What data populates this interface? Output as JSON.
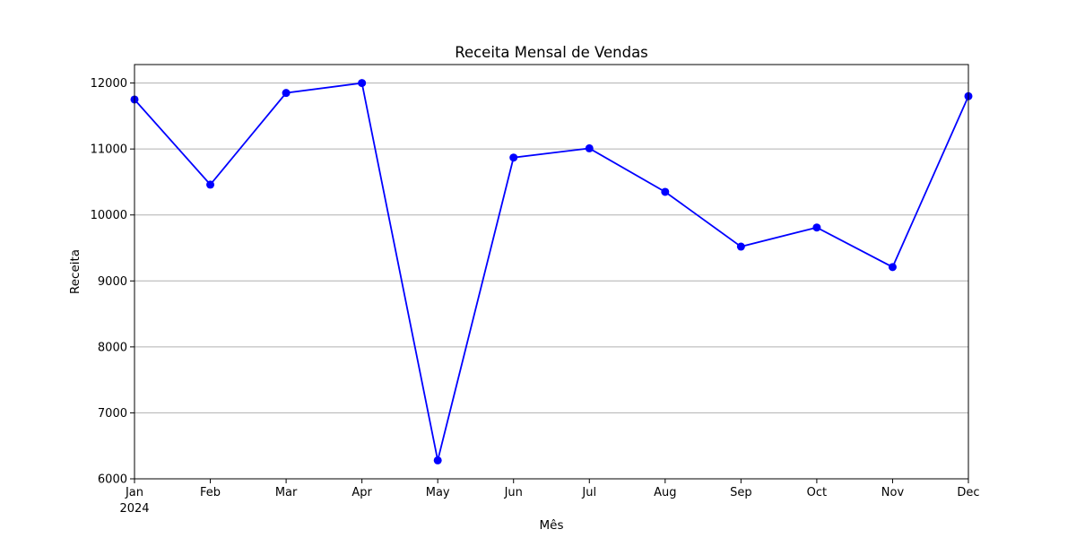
{
  "chart_data": {
    "type": "line",
    "title": "Receita Mensal de Vendas",
    "xlabel": "Mês",
    "ylabel": "Receita",
    "categories": [
      "Jan",
      "Feb",
      "Mar",
      "Apr",
      "May",
      "Jun",
      "Jul",
      "Aug",
      "Sep",
      "Oct",
      "Nov",
      "Dec"
    ],
    "year_label": "2024",
    "series": [
      {
        "values": [
          11750,
          10460,
          11850,
          12000,
          6280,
          10870,
          11010,
          10350,
          9520,
          9810,
          9210,
          11800
        ]
      }
    ],
    "ylim": [
      6000,
      12280
    ],
    "yticks": [
      6000,
      7000,
      8000,
      9000,
      10000,
      11000,
      12000
    ],
    "grid": "horizontal",
    "line_color": "#0000ff",
    "marker": "circle"
  }
}
